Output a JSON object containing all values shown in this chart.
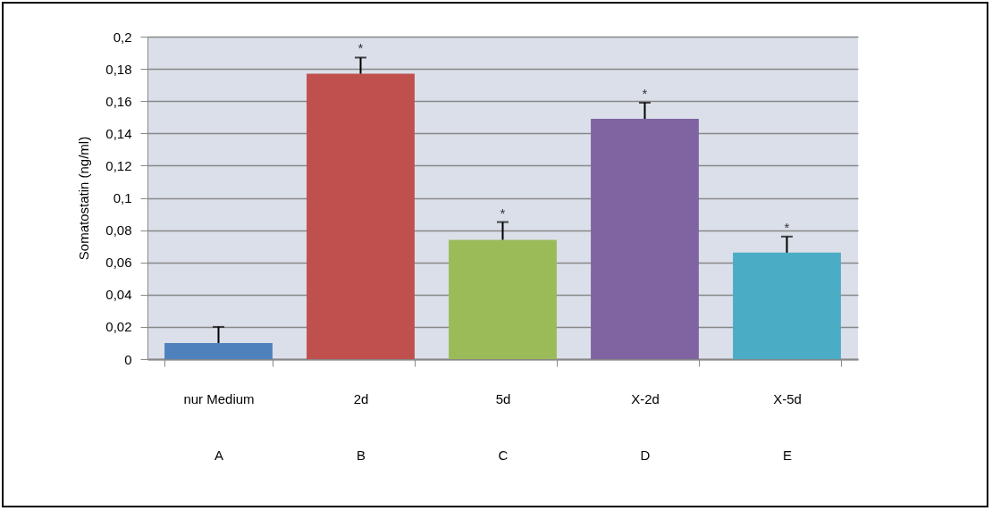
{
  "chart_data": {
    "type": "bar",
    "ylabel": "Somatostatin (ng/ml)",
    "categories": [
      "nur Medium\nA",
      "2d\nB",
      "5d\nC",
      "X-2d\nD",
      "X-5d\nE"
    ],
    "values": [
      0.01,
      0.177,
      0.074,
      0.149,
      0.066
    ],
    "colors": [
      "#4f81bd",
      "#c0504d",
      "#9bbb59",
      "#8064a2",
      "#4bacc6"
    ],
    "errors": [
      [
        0.01,
        0.02
      ],
      [
        0.177,
        0.187
      ],
      [
        0.074,
        0.085
      ],
      [
        0.149,
        0.159
      ],
      [
        0.066,
        0.076
      ]
    ],
    "ylim": [
      0,
      0.2
    ],
    "yticks": [
      0,
      {
        "value": 0.02,
        "label": "0,02"
      },
      {
        "value": 0.04,
        "label": "0,04"
      },
      {
        "value": 0.06,
        "label": "0,06"
      },
      {
        "value": 0.08,
        "label": "0,08"
      },
      {
        "value": 0.1,
        "label": "0,1"
      },
      {
        "value": 0.12,
        "label": "0,12"
      },
      {
        "value": 0.14,
        "label": "0,14"
      },
      {
        "value": 0.16,
        "label": "0,16"
      },
      {
        "value": 0.18,
        "label": "0,18"
      },
      {
        "value": 0.2,
        "label": "0,2"
      }
    ],
    "grid": "y",
    "annotations": [
      {
        "text": "*",
        "x": "2d\nB",
        "y": 0.187
      },
      {
        "text": "*",
        "x": "5d\nC",
        "y": 0.085
      },
      {
        "text": "*",
        "x": "X-2d\nD",
        "y": 0.159
      },
      {
        "text": "*",
        "x": "X-5d\nE",
        "y": 0.076
      }
    ]
  }
}
